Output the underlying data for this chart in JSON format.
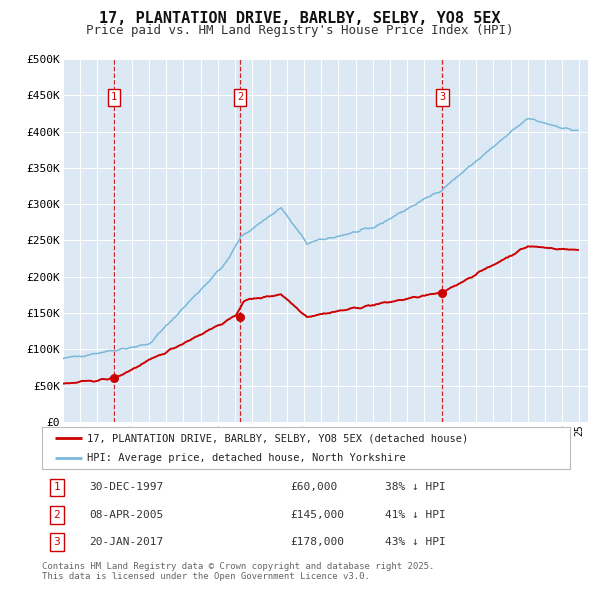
{
  "title": "17, PLANTATION DRIVE, BARLBY, SELBY, YO8 5EX",
  "subtitle": "Price paid vs. HM Land Registry's House Price Index (HPI)",
  "title_fontsize": 11,
  "subtitle_fontsize": 9,
  "plot_bg_color": "#dce9f5",
  "fig_bg_color": "#ffffff",
  "ylim": [
    0,
    500000
  ],
  "yticks": [
    0,
    50000,
    100000,
    150000,
    200000,
    250000,
    300000,
    350000,
    400000,
    450000,
    500000
  ],
  "ytick_labels": [
    "£0",
    "£50K",
    "£100K",
    "£150K",
    "£200K",
    "£250K",
    "£300K",
    "£350K",
    "£400K",
    "£450K",
    "£500K"
  ],
  "sale_prices": [
    60000,
    145000,
    178000
  ],
  "sale_labels": [
    "1",
    "2",
    "3"
  ],
  "sale_pct": [
    "38%",
    "41%",
    "43%"
  ],
  "sale_date_strs": [
    "30-DEC-1997",
    "08-APR-2005",
    "20-JAN-2017"
  ],
  "vline_color": "#cc0000",
  "hpi_line_color": "#7ab8d9",
  "price_line_color": "#cc0000",
  "marker_color": "#cc0000",
  "legend_label_price": "17, PLANTATION DRIVE, BARLBY, SELBY, YO8 5EX (detached house)",
  "legend_label_hpi": "HPI: Average price, detached house, North Yorkshire",
  "footer_text": "Contains HM Land Registry data © Crown copyright and database right 2025.\nThis data is licensed under the Open Government Licence v3.0.",
  "box_label_color": "#cc0000",
  "box_face_color": "#ffffff",
  "box_edge_color": "#cc0000"
}
